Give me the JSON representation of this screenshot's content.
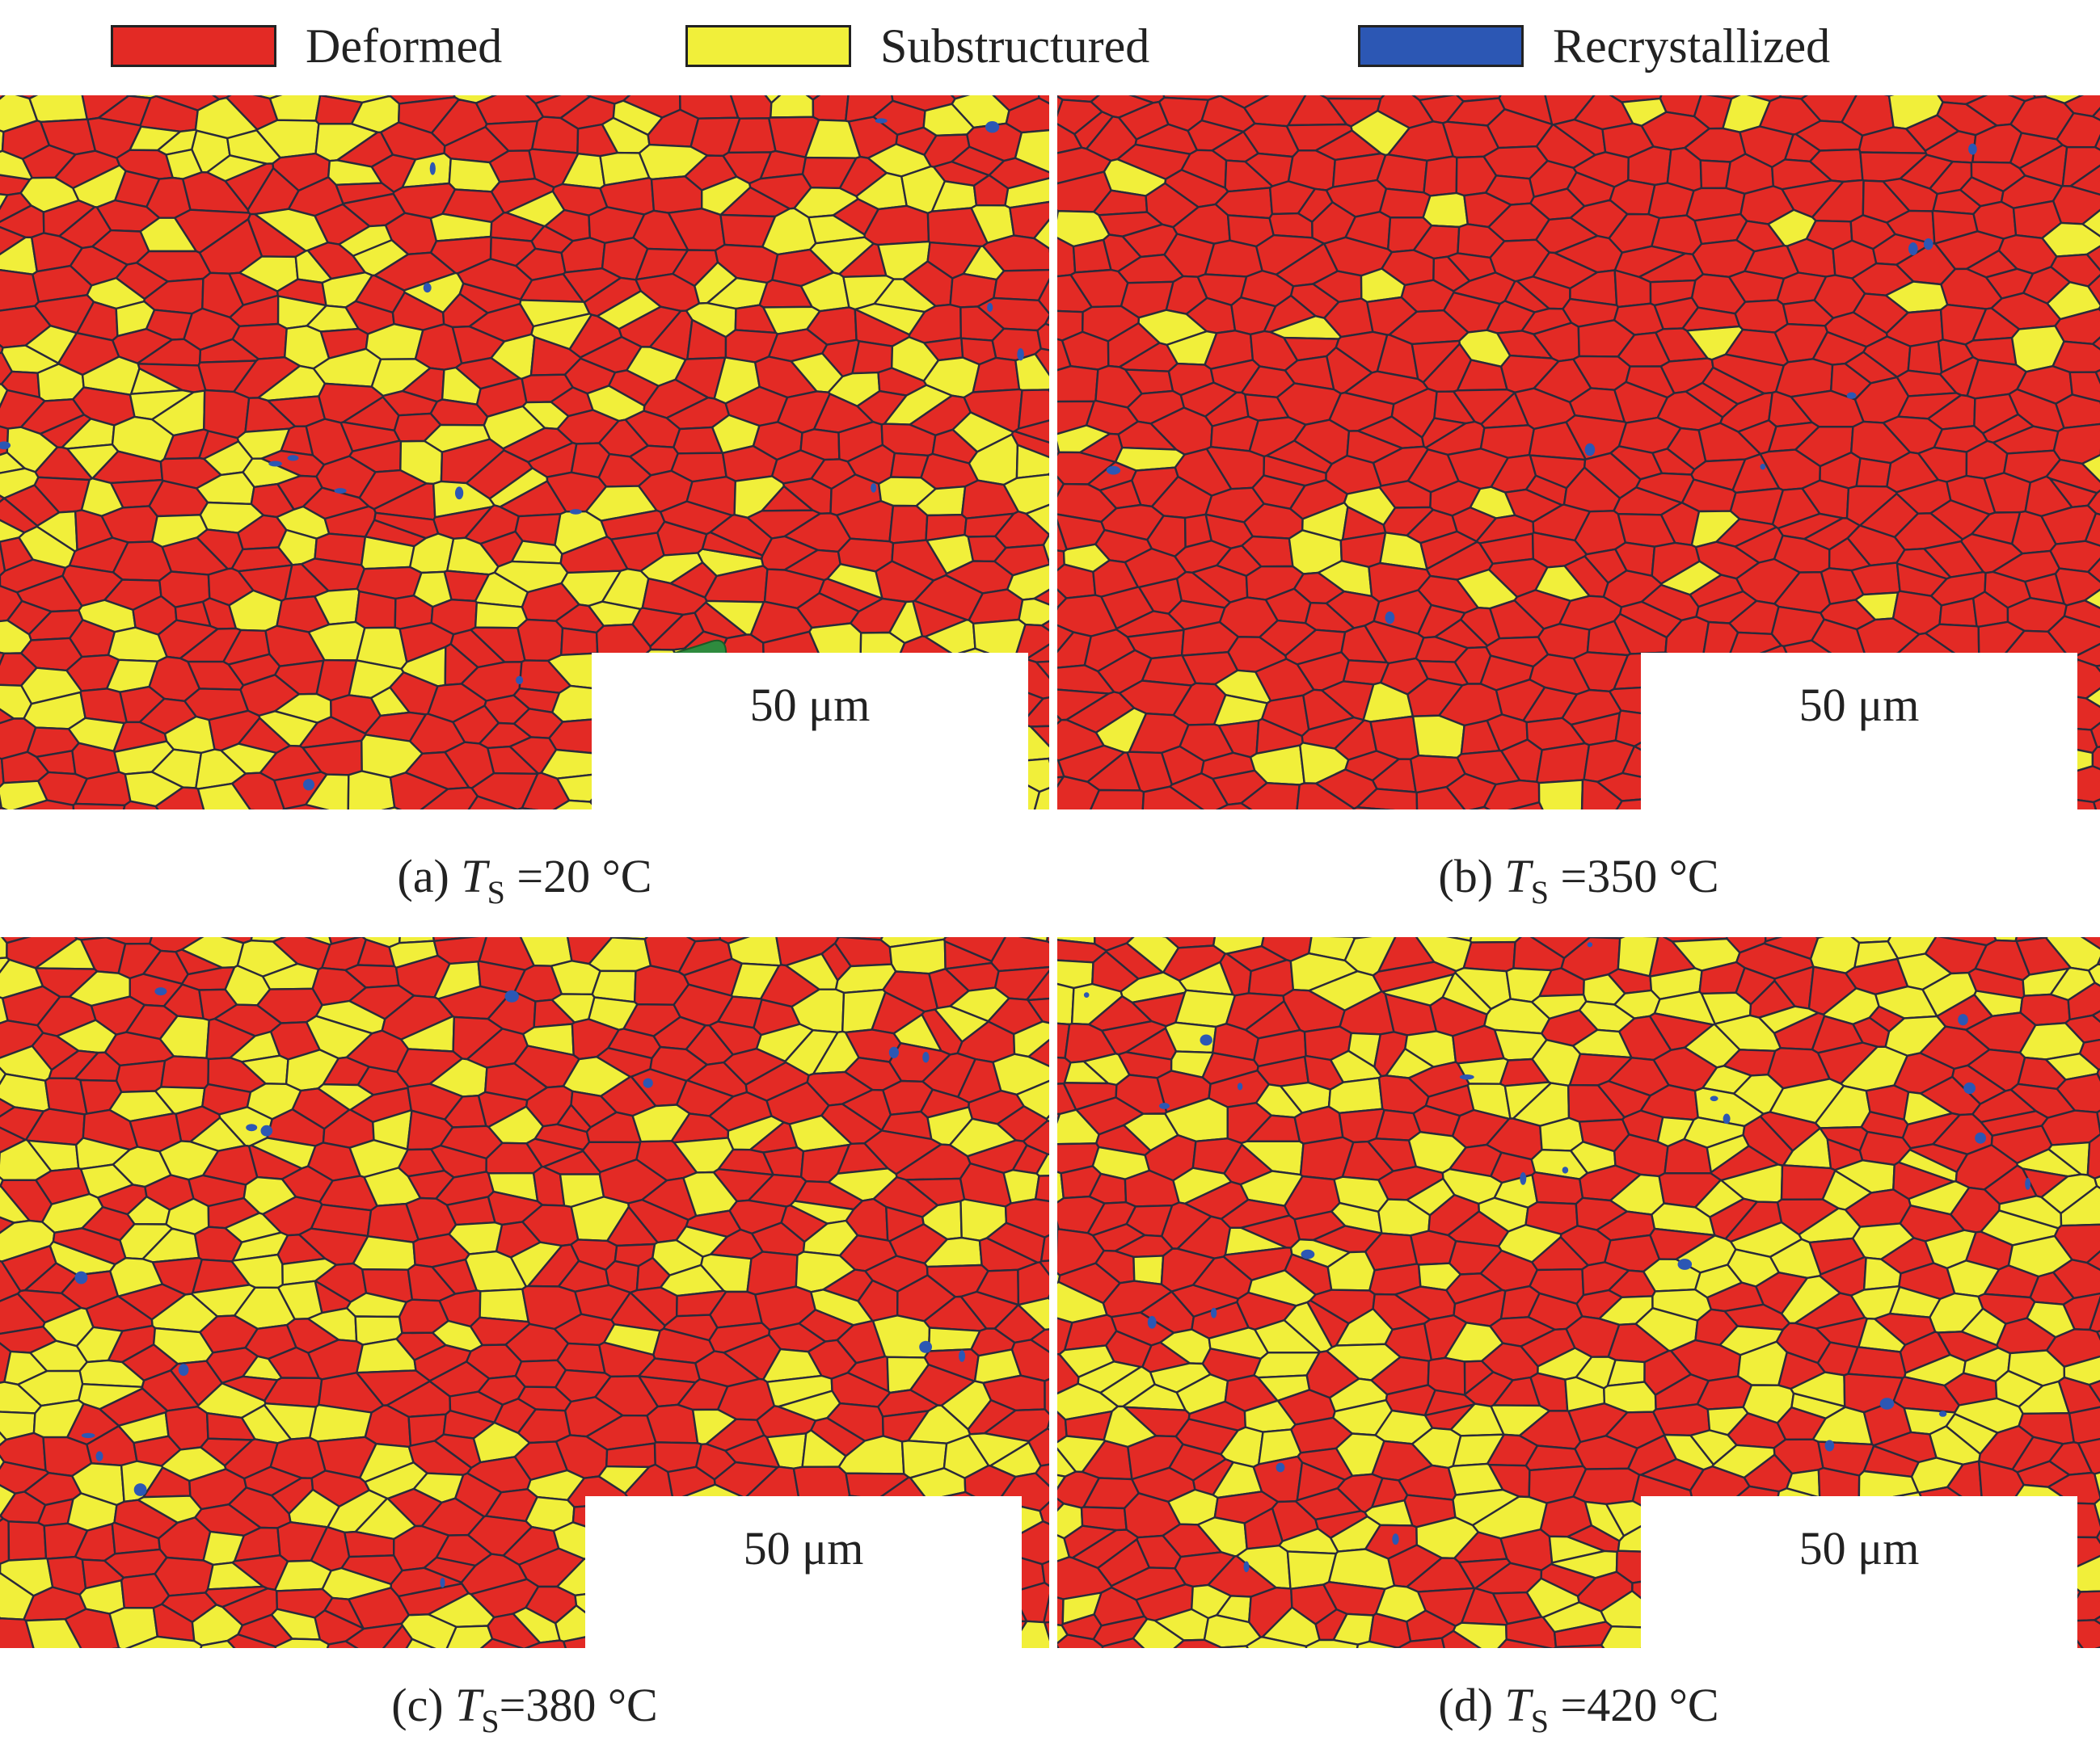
{
  "legend": {
    "items": [
      {
        "label": "Deformed",
        "color": "#e32a25"
      },
      {
        "label": "Substructured",
        "color": "#f1ef3a"
      },
      {
        "label": "Recrystallized",
        "color": "#2c57b4"
      }
    ]
  },
  "panels": [
    {
      "id": "a",
      "caption_prefix": "(a) ",
      "caption_var": "T",
      "caption_sub": "S",
      "caption_suffix": " =20 °C",
      "scale_label": "50 μm",
      "substructured_fraction": 0.3,
      "recrystallized_fraction": 0.01
    },
    {
      "id": "b",
      "caption_prefix": "(b) ",
      "caption_var": "T",
      "caption_sub": "S",
      "caption_suffix": " =350 °C",
      "scale_label": "50 μm",
      "substructured_fraction": 0.07,
      "recrystallized_fraction": 0.005
    },
    {
      "id": "c",
      "caption_prefix": "(c) ",
      "caption_var": "T",
      "caption_sub": "S",
      "caption_suffix": "=380 °C",
      "scale_label": "50 μm",
      "substructured_fraction": 0.3,
      "recrystallized_fraction": 0.01
    },
    {
      "id": "d",
      "caption_prefix": "(d) ",
      "caption_var": "T",
      "caption_sub": "S",
      "caption_suffix": " =420 °C",
      "scale_label": "50 μm",
      "substructured_fraction": 0.42,
      "recrystallized_fraction": 0.015
    }
  ],
  "colors": {
    "deformed": "#e32a25",
    "substructured": "#f1ef3a",
    "recrystallized": "#2c57b4",
    "boundary": "#2a2a3a",
    "highlight_grain": "#2e8b3e"
  }
}
